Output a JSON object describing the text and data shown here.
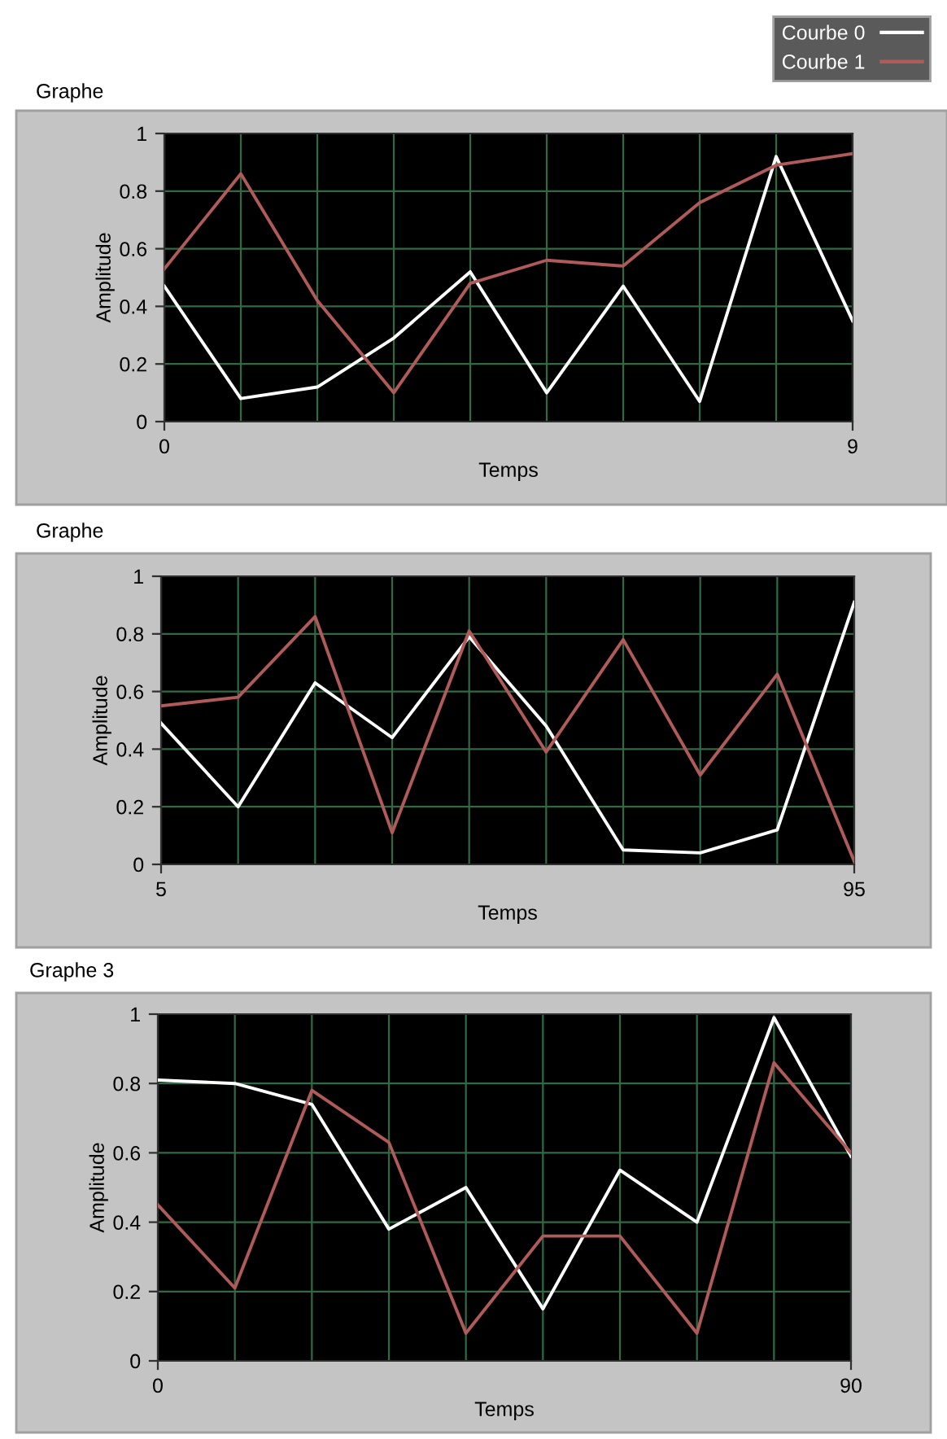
{
  "chart_data": [
    {
      "type": "line",
      "title": "Graphe",
      "xlabel": "Temps",
      "ylabel": "Amplitude",
      "x": [
        0,
        1,
        2,
        3,
        4,
        5,
        6,
        7,
        8,
        9
      ],
      "xlim": [
        0,
        9
      ],
      "xticks": [
        0,
        9
      ],
      "ylim": [
        0,
        1
      ],
      "yticks": [
        0,
        0.2,
        0.4,
        0.6,
        0.8,
        1
      ],
      "grid": true,
      "legend": "top right",
      "series": [
        {
          "name": "Courbe 0",
          "color": "#ffffff",
          "values": [
            0.47,
            0.08,
            0.12,
            0.29,
            0.52,
            0.1,
            0.47,
            0.07,
            0.92,
            0.35
          ]
        },
        {
          "name": "Courbe 1",
          "color": "#b05a5a",
          "values": [
            0.53,
            0.86,
            0.42,
            0.1,
            0.48,
            0.56,
            0.54,
            0.76,
            0.89,
            0.93
          ]
        }
      ]
    },
    {
      "type": "line",
      "title": "Graphe",
      "xlabel": "Temps",
      "ylabel": "Amplitude",
      "x": [
        5,
        15,
        25,
        35,
        45,
        55,
        65,
        75,
        85,
        95
      ],
      "xlim": [
        5,
        95
      ],
      "xticks": [
        5,
        95
      ],
      "ylim": [
        0,
        1
      ],
      "yticks": [
        0,
        0.2,
        0.4,
        0.6,
        0.8,
        1
      ],
      "grid": true,
      "series": [
        {
          "color": "#ffffff",
          "values": [
            0.49,
            0.2,
            0.63,
            0.44,
            0.79,
            0.48,
            0.05,
            0.04,
            0.12,
            0.91
          ]
        },
        {
          "color": "#b05a5a",
          "values": [
            0.55,
            0.58,
            0.86,
            0.11,
            0.81,
            0.39,
            0.78,
            0.31,
            0.66,
            0.01
          ]
        }
      ]
    },
    {
      "type": "line",
      "title": "Graphe 3",
      "xlabel": "Temps",
      "ylabel": "Amplitude",
      "x": [
        0,
        10,
        20,
        30,
        40,
        50,
        60,
        70,
        80,
        90
      ],
      "xlim": [
        0,
        90
      ],
      "xticks": [
        0,
        90
      ],
      "ylim": [
        0,
        1
      ],
      "yticks": [
        0,
        0.2,
        0.4,
        0.6,
        0.8,
        1
      ],
      "grid": true,
      "series": [
        {
          "color": "#ffffff",
          "values": [
            0.81,
            0.8,
            0.74,
            0.38,
            0.5,
            0.15,
            0.55,
            0.4,
            0.99,
            0.59
          ]
        },
        {
          "color": "#b05a5a",
          "values": [
            0.45,
            0.21,
            0.78,
            0.63,
            0.08,
            0.36,
            0.36,
            0.08,
            0.86,
            0.6
          ]
        }
      ]
    }
  ]
}
